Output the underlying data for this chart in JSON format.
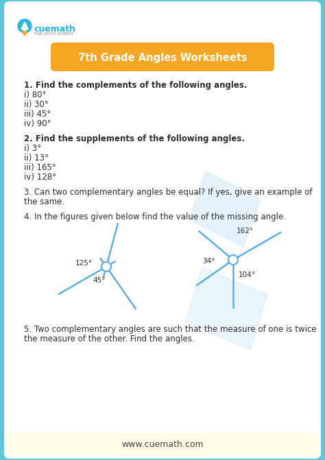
{
  "title": "7th Grade Angles Worksheets",
  "title_bg": "#F5A623",
  "title_color": "#ffffff",
  "outer_bg": "#5bc8d8",
  "card_bg": "#ffffff",
  "logo_text": "cuemath",
  "logo_sub": "THE MATH EXPERT",
  "footer": "www.cuemath.com",
  "footer_bg": "#f0f8ff",
  "q1_header": "1. Find the complements of the following angles.",
  "q1_items": [
    "i) 80°",
    "ii) 30°",
    "iii) 45°",
    "iv) 90°"
  ],
  "q2_header": "2. Find the supplements of the following angles.",
  "q2_items": [
    "i) 3°",
    "ii) 13°",
    "iii) 165°",
    "iv) 128°"
  ],
  "q3_line1": "3. Can two complementary angles be equal? If yes, give an example of",
  "q3_line2": "the same.",
  "q4": "4. In the figures given below find the value of the missing angle.",
  "q5_line1": "5. Two complementary angles are such that the measure of one is twice",
  "q5_line2": "the measure of the other. Find the angles.",
  "fig1_label1": "125°",
  "fig1_label2": "45°",
  "fig2_label1": "162°",
  "fig2_label2": "34°",
  "fig2_label3": "104°",
  "line_color": "#5dade2",
  "text_color": "#2c2c2c",
  "watermark_color": "#d6eaf8",
  "logo_color": "#29b6d8",
  "logo_rocket_body": "#29b6d8",
  "logo_rocket_flame": "#f5a623"
}
